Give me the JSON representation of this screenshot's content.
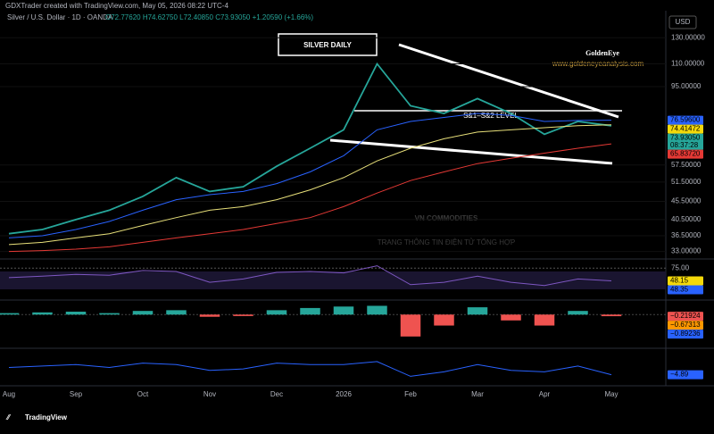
{
  "header": {
    "author": "GDXTrader created with TradingView.com, May 05, 2026 08:22 UTC-4",
    "symbol": "Silver / U.S. Dollar · 1D · OANDA",
    "ohlc": "O72.77620 H74.62750 L72.40850 C73.93050 +1.20590 (+1.66%)",
    "currency": "USD"
  },
  "chart_data": [
    {
      "type": "line",
      "log_scale": true,
      "categories": [
        "Aug",
        null,
        "Sep",
        null,
        "Oct",
        null,
        "Nov",
        null,
        "Dec",
        null,
        "2026",
        null,
        "Feb",
        null,
        "Mar",
        null,
        "Apr",
        null,
        "May"
      ],
      "series": [
        {
          "color": "#26a69a",
          "values": [
            37,
            38,
            40.5,
            43,
            47,
            53,
            48.5,
            50,
            57,
            64,
            72,
            110,
            84,
            80,
            88,
            80,
            70,
            76,
            73.93
          ]
        },
        {
          "color": "#2962ff",
          "values": [
            36,
            36.5,
            38,
            40,
            43,
            46,
            47.5,
            48.5,
            51,
            55,
            61,
            72,
            76,
            78,
            80,
            79,
            76,
            76.5,
            76.6
          ]
        },
        {
          "color": "#e8e07a",
          "values": [
            34.5,
            35,
            36,
            37,
            39,
            41,
            43,
            44,
            46,
            49,
            53,
            59,
            64,
            68,
            71,
            72,
            73,
            74,
            74.41
          ]
        },
        {
          "color": "#e53935",
          "values": [
            33,
            33.2,
            33.5,
            34,
            35,
            36,
            37,
            38,
            39.5,
            41,
            44,
            48,
            52,
            55,
            58,
            60,
            62,
            64,
            65.84
          ]
        }
      ],
      "ylim": [
        32,
        152
      ],
      "yticks": [
        {
          "value": 33,
          "label": "33.00000"
        },
        {
          "value": 36.5,
          "label": "36.50000"
        },
        {
          "value": 40.5,
          "label": "40.50000"
        },
        {
          "value": 45.5,
          "label": "45.50000"
        },
        {
          "value": 51.5,
          "label": "51.50000"
        },
        {
          "value": 57.5,
          "label": "57.50000"
        },
        {
          "value": 95,
          "label": "95.00000"
        },
        {
          "value": 110,
          "label": "110.00000"
        },
        {
          "value": 130,
          "label": "130.00000"
        }
      ],
      "price_labels": [
        {
          "value": 76.596,
          "label": "76.59600",
          "color": "#2962ff"
        },
        {
          "value": 74.41472,
          "label": "74.41472",
          "color": "#f5d90a"
        },
        {
          "value": 73.9305,
          "label": "73.93050",
          "color": "#26a69a"
        },
        {
          "value": 65.8372,
          "label": "65.83720",
          "color": "#e53935"
        }
      ],
      "countdown": "08:37:28"
    },
    {
      "type": "line",
      "series": [
        {
          "color": "#7e57c2",
          "values": [
            55,
            58,
            62,
            60,
            70,
            68,
            45,
            52,
            66,
            68,
            65,
            80,
            40,
            45,
            58,
            45,
            38,
            52,
            48.15
          ]
        }
      ],
      "ylim": [
        15,
        85
      ],
      "yticks": [
        {
          "value": 75,
          "label": "75.00"
        }
      ],
      "price_labels": [
        {
          "value": 48.15,
          "label": "48.15",
          "color": "#f5d90a"
        },
        {
          "value": 48.35,
          "label": "48.35",
          "color": "#2962ff"
        }
      ]
    },
    {
      "type": "bar",
      "colors": {
        "up": "#26a69a",
        "down": "#ef5350"
      },
      "values": [
        0.2,
        0.3,
        0.4,
        0.2,
        0.5,
        0.6,
        -0.3,
        -0.2,
        0.6,
        0.9,
        1.1,
        1.2,
        -3,
        -1.5,
        1,
        -0.8,
        -1.5,
        0.5,
        -0.21924
      ],
      "ylim": [
        -4,
        1.5
      ],
      "price_labels": [
        {
          "value": -0.21924,
          "label": "−0.21924",
          "color": "#ef5350"
        },
        {
          "value": -0.67313,
          "label": "−0.67313",
          "color": "#ff9800"
        },
        {
          "value": -0.89236,
          "label": "−0.89236",
          "color": "#2962ff"
        }
      ]
    },
    {
      "type": "line",
      "series": [
        {
          "color": "#2962ff",
          "values": [
            0,
            1,
            2,
            0,
            3,
            2,
            -2,
            -1,
            3,
            2,
            2,
            4,
            -6,
            -3,
            2,
            -2,
            -3,
            1,
            -4.89
          ]
        }
      ],
      "ylim": [
        -10,
        10
      ],
      "price_labels": [
        {
          "value": -4.89,
          "label": "−4.89",
          "color": "#2962ff"
        }
      ]
    }
  ],
  "annotations": {
    "title": "SILVER DAILY",
    "level": "S&1–S&2 LEVEL",
    "brand": "GoldenEye",
    "site": "www.goldeneyeanalysis.com"
  },
  "watermark": {
    "name": "VN COMMODITIES",
    "tagline": "TRANG THÔNG TIN ĐIỆN TỬ TỔNG HỢP"
  },
  "footer": "TradingView"
}
